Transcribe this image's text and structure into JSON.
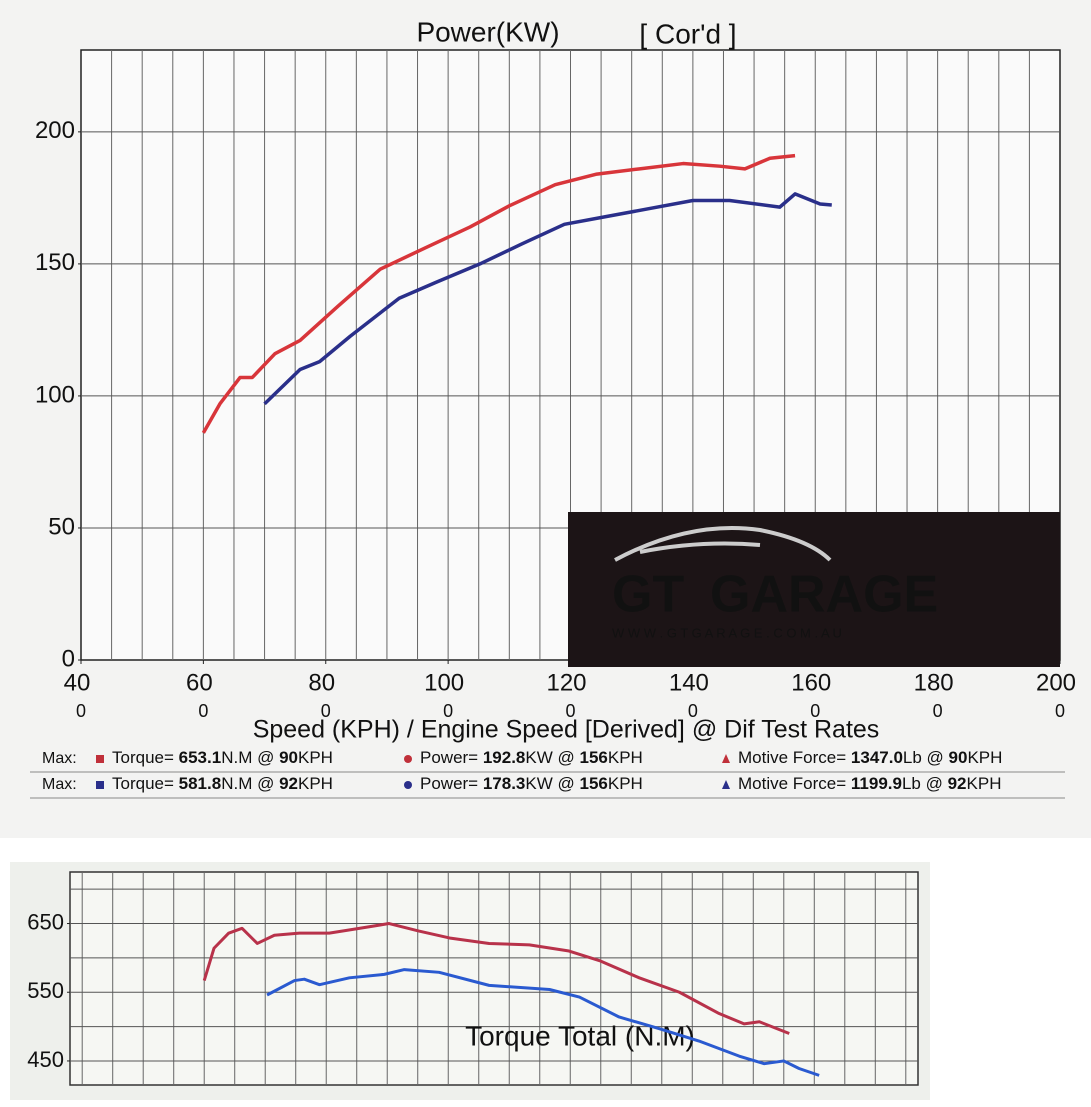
{
  "chart_data": [
    {
      "type": "line",
      "title": "Power(KW)",
      "subtitle": "[ Cor'd ]",
      "x_label": "Speed (KPH) / Engine Speed [Derived] @ Dif Test Rates",
      "xlim": [
        40,
        200
      ],
      "ylim": [
        0,
        231
      ],
      "xticks": [
        40,
        60,
        80,
        100,
        120,
        140,
        160,
        180,
        200
      ],
      "engine_speed_labels": [
        "0",
        "0",
        "0",
        "0",
        "0",
        "0",
        "0",
        "0",
        "0"
      ],
      "yticks": [
        0,
        50,
        100,
        150,
        200
      ],
      "xgrid": [
        45,
        50,
        55,
        60,
        65,
        70,
        75,
        80,
        85,
        90,
        95,
        100,
        105,
        110,
        115,
        120,
        125,
        130,
        135,
        140,
        145,
        150,
        155,
        160,
        165,
        170,
        175,
        180,
        185,
        190,
        195
      ],
      "ygrid": [
        50,
        100,
        150,
        200
      ],
      "grid": true,
      "series": [
        {
          "color": "#d8353a",
          "x": [
            60,
            62.7,
            66,
            68,
            71.7,
            75.8,
            82,
            88.9,
            96.2,
            103.6,
            110,
            117.5,
            124.3,
            131.3,
            138.4,
            144.4,
            148.5,
            152.6,
            156.7
          ],
          "values": [
            86,
            97,
            107,
            107,
            116,
            121,
            134,
            148,
            156,
            164,
            172,
            180,
            184,
            186,
            188,
            187,
            186,
            190,
            191
          ]
        },
        {
          "color": "#2a2f8a",
          "x": [
            70,
            75.8,
            79,
            84,
            92,
            98,
            105.2,
            112,
            119,
            126,
            133,
            140,
            146,
            154.2,
            156.7,
            160.8,
            162.7
          ],
          "values": [
            97,
            110,
            113,
            122.6,
            137,
            143,
            150,
            157.5,
            165,
            168,
            171,
            174,
            174,
            171.5,
            176.5,
            172.7,
            172.3
          ]
        }
      ],
      "logo": {
        "brand_a": "GT",
        "brand_b": "GARAGE",
        "url": "W W W . G T G A R A G E . C O M . A U"
      },
      "max_rows": [
        {
          "label": "Max:",
          "color": "#c0303a",
          "groups": [
            {
              "marker": "square",
              "segments": [
                {
                  "text": "Torque= ",
                  "bold": false
                },
                {
                  "text": "653.1",
                  "bold": true
                },
                {
                  "text": "N.M @ ",
                  "bold": false
                },
                {
                  "text": "90",
                  "bold": true
                },
                {
                  "text": "KPH",
                  "bold": false
                }
              ]
            },
            {
              "marker": "circle",
              "segments": [
                {
                  "text": "Power= ",
                  "bold": false
                },
                {
                  "text": "192.8",
                  "bold": true
                },
                {
                  "text": "KW @ ",
                  "bold": false
                },
                {
                  "text": "156",
                  "bold": true
                },
                {
                  "text": "KPH",
                  "bold": false
                }
              ]
            },
            {
              "marker": "triangle",
              "segments": [
                {
                  "text": "Motive Force= ",
                  "bold": false
                },
                {
                  "text": "1347.0",
                  "bold": true
                },
                {
                  "text": "Lb @ ",
                  "bold": false
                },
                {
                  "text": "90",
                  "bold": true
                },
                {
                  "text": "KPH",
                  "bold": false
                }
              ]
            }
          ]
        },
        {
          "label": "Max:",
          "color": "#2a2f8a",
          "groups": [
            {
              "marker": "square",
              "segments": [
                {
                  "text": "Torque= ",
                  "bold": false
                },
                {
                  "text": "581.8",
                  "bold": true
                },
                {
                  "text": "N.M @ ",
                  "bold": false
                },
                {
                  "text": "92",
                  "bold": true
                },
                {
                  "text": "KPH",
                  "bold": false
                }
              ]
            },
            {
              "marker": "circle",
              "segments": [
                {
                  "text": "Power= ",
                  "bold": false
                },
                {
                  "text": "178.3",
                  "bold": true
                },
                {
                  "text": "KW @ ",
                  "bold": false
                },
                {
                  "text": "156",
                  "bold": true
                },
                {
                  "text": "KPH",
                  "bold": false
                }
              ]
            },
            {
              "marker": "triangle",
              "segments": [
                {
                  "text": "Motive Force= ",
                  "bold": false
                },
                {
                  "text": "1199.9",
                  "bold": true
                },
                {
                  "text": "Lb @ ",
                  "bold": false
                },
                {
                  "text": "92",
                  "bold": true
                },
                {
                  "text": "KPH",
                  "bold": false
                }
              ]
            }
          ]
        }
      ]
    },
    {
      "type": "line",
      "title": "Torque Total (N.M)",
      "xlim": [
        38,
        177
      ],
      "ylim": [
        415,
        725
      ],
      "yticks": [
        450,
        550,
        650
      ],
      "xgrid": [
        40,
        45,
        50,
        55,
        60,
        65,
        70,
        75,
        80,
        85,
        90,
        95,
        100,
        105,
        110,
        115,
        120,
        125,
        130,
        135,
        140,
        145,
        150,
        155,
        160,
        165,
        170,
        175
      ],
      "ygrid": [
        450,
        500,
        550,
        600,
        650,
        700
      ],
      "grid": true,
      "series": [
        {
          "color": "#b8324a",
          "x": [
            60,
            61.6,
            64,
            66.2,
            68.7,
            71.5,
            75.6,
            80.5,
            85.4,
            90.3,
            95.2,
            100.2,
            106.7,
            113.3,
            119.8,
            124.8,
            131.3,
            137.9,
            144.4,
            148.5,
            151,
            155.9
          ],
          "values": [
            567,
            614,
            636,
            643,
            621,
            633,
            636,
            636,
            643,
            650,
            639,
            629,
            621,
            619,
            610,
            596,
            571,
            550,
            519,
            504,
            507,
            490
          ]
        },
        {
          "color": "#2a5ad0",
          "x": [
            70.3,
            74.8,
            76.4,
            78.9,
            83.8,
            89.5,
            92.8,
            98.5,
            106.7,
            116.6,
            121.5,
            128,
            134.6,
            141.1,
            147.7,
            151.8,
            155,
            157.5,
            160.8
          ],
          "values": [
            546,
            567,
            569,
            561,
            571,
            576,
            583,
            579,
            560,
            554,
            543,
            514,
            497,
            479,
            457,
            446,
            450,
            439,
            429
          ]
        }
      ]
    }
  ]
}
